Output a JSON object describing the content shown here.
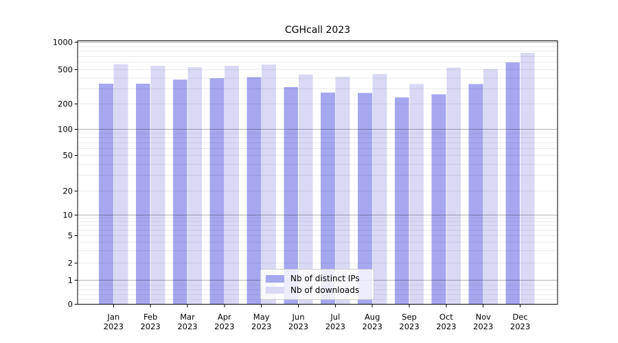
{
  "chart_data": {
    "type": "bar",
    "title": "CGHcall 2023",
    "categories": [
      "Jan",
      "Feb",
      "Mar",
      "Apr",
      "May",
      "Jun",
      "Jul",
      "Aug",
      "Sep",
      "Oct",
      "Nov",
      "Dec"
    ],
    "category_year": "2023",
    "series": [
      {
        "name": "Nb of distinct IPs",
        "color": "#a7a7f0",
        "values": [
          345,
          345,
          385,
          400,
          410,
          315,
          272,
          268,
          240,
          260,
          340,
          600
        ]
      },
      {
        "name": "Nb of downloads",
        "color": "#d9d9f6",
        "values": [
          575,
          550,
          535,
          550,
          570,
          440,
          415,
          445,
          340,
          530,
          510,
          770
        ]
      }
    ],
    "y_axis": {
      "scale": "symlog",
      "range": [
        0,
        1000
      ],
      "ticks": [
        0,
        1,
        2,
        5,
        10,
        20,
        50,
        100,
        200,
        500,
        1000
      ]
    },
    "legend": {
      "position": "lower-center",
      "entries": [
        "Nb of distinct IPs",
        "Nb of downloads"
      ]
    },
    "grid": true,
    "colors": {
      "major_grid": "rgba(0,0,0,0.30)",
      "minor_grid": "rgba(0,0,0,0.08)",
      "axis": "#000000",
      "background": "#ffffff",
      "text": "#000000"
    }
  }
}
